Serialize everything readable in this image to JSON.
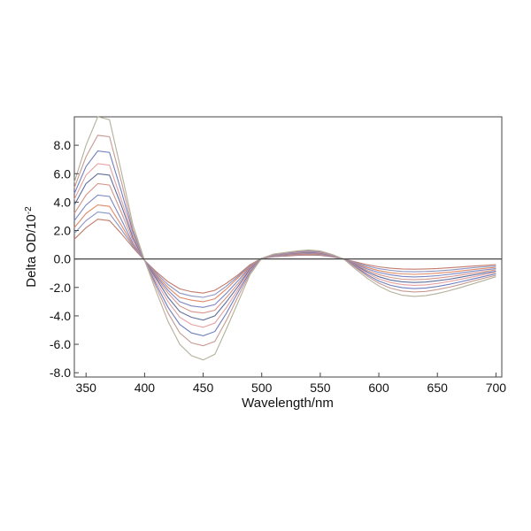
{
  "chart_data": {
    "type": "line",
    "title": "",
    "xlabel": "Wavelength/nm",
    "ylabel_base": "Delta OD/10",
    "ylabel_exponent": "-2",
    "xlim": [
      340,
      705
    ],
    "ylim": [
      -8.3,
      10.0
    ],
    "xticks": [
      350,
      400,
      450,
      500,
      550,
      600,
      650,
      700
    ],
    "yticks": [
      -8.0,
      -6.0,
      -4.0,
      -2.0,
      0.0,
      2.0,
      4.0,
      6.0,
      8.0
    ],
    "ytick_labels": [
      "-8.0",
      "-6.0",
      "-4.0",
      "-2.0",
      "0.0",
      "2.0",
      "4.0",
      "6.0",
      "8.0"
    ],
    "grid": false,
    "zero_line": true,
    "x": [
      340,
      350,
      360,
      370,
      380,
      390,
      400,
      410,
      420,
      430,
      440,
      450,
      460,
      470,
      480,
      490,
      500,
      510,
      520,
      530,
      540,
      550,
      560,
      570,
      580,
      590,
      600,
      610,
      620,
      630,
      640,
      650,
      660,
      670,
      680,
      690,
      700
    ],
    "series": [
      {
        "color": "#c27a6a",
        "values": [
          1.4,
          2.2,
          2.8,
          2.7,
          1.8,
          0.8,
          -0.1,
          -0.9,
          -1.6,
          -2.1,
          -2.3,
          -2.4,
          -2.2,
          -1.7,
          -1.1,
          -0.4,
          0.05,
          0.15,
          0.2,
          0.25,
          0.28,
          0.25,
          0.15,
          0.0,
          -0.2,
          -0.4,
          -0.55,
          -0.65,
          -0.7,
          -0.72,
          -0.7,
          -0.67,
          -0.62,
          -0.56,
          -0.5,
          -0.45,
          -0.4
        ]
      },
      {
        "color": "#8a94c4",
        "values": [
          1.8,
          2.7,
          3.3,
          3.2,
          2.1,
          0.9,
          -0.1,
          -1.0,
          -1.8,
          -2.4,
          -2.6,
          -2.7,
          -2.5,
          -1.9,
          -1.2,
          -0.45,
          0.05,
          0.17,
          0.23,
          0.28,
          0.32,
          0.28,
          0.17,
          0.0,
          -0.25,
          -0.5,
          -0.68,
          -0.8,
          -0.88,
          -0.9,
          -0.88,
          -0.84,
          -0.78,
          -0.7,
          -0.62,
          -0.55,
          -0.5
        ]
      },
      {
        "color": "#e08a66",
        "values": [
          2.2,
          3.2,
          3.8,
          3.7,
          2.4,
          1.0,
          -0.1,
          -1.1,
          -2.0,
          -2.7,
          -2.9,
          -3.0,
          -2.8,
          -2.1,
          -1.3,
          -0.5,
          0.05,
          0.2,
          0.26,
          0.31,
          0.36,
          0.31,
          0.19,
          0.0,
          -0.3,
          -0.6,
          -0.82,
          -0.97,
          -1.05,
          -1.08,
          -1.05,
          -1.0,
          -0.93,
          -0.84,
          -0.75,
          -0.66,
          -0.58
        ]
      },
      {
        "color": "#7b86c2",
        "values": [
          2.7,
          3.8,
          4.5,
          4.4,
          2.8,
          1.1,
          -0.1,
          -1.2,
          -2.2,
          -3.0,
          -3.3,
          -3.4,
          -3.2,
          -2.4,
          -1.5,
          -0.55,
          0.05,
          0.22,
          0.29,
          0.35,
          0.4,
          0.35,
          0.21,
          0.0,
          -0.35,
          -0.7,
          -0.95,
          -1.12,
          -1.22,
          -1.26,
          -1.23,
          -1.17,
          -1.08,
          -0.98,
          -0.87,
          -0.77,
          -0.68
        ]
      },
      {
        "color": "#d6958a",
        "values": [
          3.2,
          4.5,
          5.3,
          5.2,
          3.3,
          1.3,
          -0.1,
          -1.3,
          -2.4,
          -3.3,
          -3.7,
          -3.8,
          -3.6,
          -2.7,
          -1.7,
          -0.6,
          0.05,
          0.24,
          0.32,
          0.38,
          0.44,
          0.39,
          0.23,
          0.0,
          -0.4,
          -0.8,
          -1.1,
          -1.3,
          -1.42,
          -1.46,
          -1.43,
          -1.35,
          -1.25,
          -1.13,
          -1.0,
          -0.88,
          -0.77
        ]
      },
      {
        "color": "#5f6f9e",
        "values": [
          3.8,
          5.3,
          6.0,
          5.9,
          3.8,
          1.5,
          -0.1,
          -1.4,
          -2.7,
          -3.7,
          -4.1,
          -4.3,
          -4.0,
          -3.0,
          -1.9,
          -0.7,
          0.05,
          0.26,
          0.35,
          0.42,
          0.48,
          0.42,
          0.25,
          0.0,
          -0.45,
          -0.9,
          -1.25,
          -1.48,
          -1.6,
          -1.65,
          -1.62,
          -1.53,
          -1.42,
          -1.28,
          -1.13,
          -0.99,
          -0.86
        ]
      },
      {
        "color": "#e6a0a0",
        "values": [
          4.2,
          5.9,
          6.7,
          6.6,
          4.2,
          1.7,
          -0.1,
          -1.6,
          -3.0,
          -4.1,
          -4.6,
          -4.8,
          -4.5,
          -3.4,
          -2.1,
          -0.8,
          0.05,
          0.28,
          0.38,
          0.46,
          0.52,
          0.46,
          0.27,
          0.0,
          -0.5,
          -1.0,
          -1.4,
          -1.65,
          -1.8,
          -1.85,
          -1.82,
          -1.72,
          -1.58,
          -1.43,
          -1.26,
          -1.1,
          -0.95
        ]
      },
      {
        "color": "#6e7fbe",
        "values": [
          4.6,
          6.5,
          7.6,
          7.5,
          4.8,
          1.9,
          -0.1,
          -1.8,
          -3.4,
          -4.6,
          -5.2,
          -5.4,
          -5.1,
          -3.8,
          -2.3,
          -0.9,
          0.05,
          0.3,
          0.4,
          0.5,
          0.56,
          0.5,
          0.29,
          0.0,
          -0.55,
          -1.1,
          -1.55,
          -1.85,
          -2.02,
          -2.08,
          -2.04,
          -1.93,
          -1.78,
          -1.6,
          -1.41,
          -1.22,
          -1.05
        ]
      },
      {
        "color": "#c79a92",
        "values": [
          5.0,
          7.2,
          8.7,
          8.6,
          5.5,
          2.1,
          -0.1,
          -2.0,
          -3.8,
          -5.2,
          -5.9,
          -6.1,
          -5.8,
          -4.3,
          -2.6,
          -1.0,
          0.05,
          0.32,
          0.43,
          0.53,
          0.6,
          0.53,
          0.31,
          0.0,
          -0.6,
          -1.2,
          -1.7,
          -2.05,
          -2.25,
          -2.32,
          -2.28,
          -2.15,
          -1.98,
          -1.78,
          -1.56,
          -1.35,
          -1.15
        ]
      },
      {
        "color": "#b4b09a",
        "values": [
          5.4,
          8.0,
          10.0,
          9.8,
          6.2,
          2.4,
          -0.1,
          -2.3,
          -4.4,
          -6.0,
          -6.8,
          -7.1,
          -6.7,
          -4.9,
          -3.0,
          -1.1,
          0.05,
          0.35,
          0.46,
          0.57,
          0.64,
          0.57,
          0.33,
          0.0,
          -0.7,
          -1.35,
          -1.9,
          -2.3,
          -2.55,
          -2.63,
          -2.58,
          -2.43,
          -2.23,
          -2.0,
          -1.75,
          -1.5,
          -1.25
        ]
      }
    ]
  }
}
